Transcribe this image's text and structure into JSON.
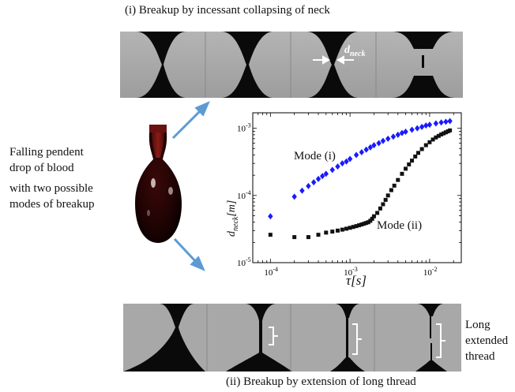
{
  "figure": {
    "top_caption": "(i) Breakup by incessant collapsing of neck",
    "bottom_caption": "(ii) Breakup by extension of long thread",
    "left_text": [
      "Falling pendent",
      "drop of blood",
      "with two possible",
      "modes of breakup"
    ],
    "right_text": [
      "Long",
      "extended",
      "thread"
    ],
    "dneck_label_base": "d",
    "dneck_label_sub": "neck"
  },
  "colors": {
    "arrow": "#5b9bd5",
    "mode_i": "#1a1aff",
    "mode_ii": "#111111",
    "frame_bg": "#a6a6a6",
    "blood_dark": "#2a0606",
    "blood_mid": "#6a1210"
  },
  "chart_data": {
    "type": "scatter",
    "xscale": "log",
    "yscale": "log",
    "xlim": [
      6e-05,
      0.025
    ],
    "ylim": [
      1e-05,
      0.0017
    ],
    "xticks": [
      {
        "value": 0.0001,
        "label_base": "10",
        "label_exp": "-4"
      },
      {
        "value": 0.001,
        "label_base": "10",
        "label_exp": "-3"
      },
      {
        "value": 0.01,
        "label_base": "10",
        "label_exp": "-2"
      }
    ],
    "yticks": [
      {
        "value": 1e-05,
        "label_base": "10",
        "label_exp": "-5"
      },
      {
        "value": 0.0001,
        "label_base": "10",
        "label_exp": "-4"
      },
      {
        "value": 0.001,
        "label_base": "10",
        "label_exp": "-3"
      }
    ],
    "xlabel": "τ[s]",
    "ylabel_base": "d",
    "ylabel_sub": "neck",
    "ylabel_rest": "[m]",
    "series": [
      {
        "name": "Mode (i)",
        "marker": "diamond",
        "color": "#1a1aff",
        "points": [
          [
            0.0001,
            4.9e-05
          ],
          [
            0.0002,
            9.6e-05
          ],
          [
            0.00025,
            0.000118
          ],
          [
            0.0003,
            0.000138
          ],
          [
            0.00035,
            0.000157
          ],
          [
            0.0004,
            0.000176
          ],
          [
            0.00045,
            0.000194
          ],
          [
            0.0005,
            0.00021
          ],
          [
            0.0006,
            0.00024
          ],
          [
            0.0007,
            0.00027
          ],
          [
            0.0008,
            0.0003
          ],
          [
            0.0009,
            0.00032
          ],
          [
            0.001,
            0.00035
          ],
          [
            0.0012,
            0.0004
          ],
          [
            0.0014,
            0.00044
          ],
          [
            0.0016,
            0.00048
          ],
          [
            0.0018,
            0.00052
          ],
          [
            0.002,
            0.00056
          ],
          [
            0.0023,
            0.0006
          ],
          [
            0.0026,
            0.00065
          ],
          [
            0.003,
            0.0007
          ],
          [
            0.0035,
            0.00075
          ],
          [
            0.004,
            0.0008
          ],
          [
            0.0045,
            0.00085
          ],
          [
            0.005,
            0.00089
          ],
          [
            0.006,
            0.00095
          ],
          [
            0.007,
            0.001
          ],
          [
            0.008,
            0.00105
          ],
          [
            0.009,
            0.0011
          ],
          [
            0.01,
            0.00113
          ],
          [
            0.012,
            0.00118
          ],
          [
            0.014,
            0.00122
          ],
          [
            0.016,
            0.00125
          ],
          [
            0.018,
            0.00128
          ]
        ]
      },
      {
        "name": "Mode (ii)",
        "marker": "square",
        "color": "#111111",
        "points": [
          [
            0.0001,
            2.6e-05
          ],
          [
            0.0002,
            2.4e-05
          ],
          [
            0.0003,
            2.4e-05
          ],
          [
            0.0004,
            2.6e-05
          ],
          [
            0.0005,
            2.8e-05
          ],
          [
            0.0006,
            2.9e-05
          ],
          [
            0.0007,
            3e-05
          ],
          [
            0.0008,
            3.1e-05
          ],
          [
            0.0009,
            3.2e-05
          ],
          [
            0.001,
            3.3e-05
          ],
          [
            0.0011,
            3.4e-05
          ],
          [
            0.0012,
            3.5e-05
          ],
          [
            0.0013,
            3.6e-05
          ],
          [
            0.0014,
            3.7e-05
          ],
          [
            0.0015,
            3.8e-05
          ],
          [
            0.0016,
            3.9e-05
          ],
          [
            0.0017,
            4e-05
          ],
          [
            0.0018,
            4.2e-05
          ],
          [
            0.0019,
            4.5e-05
          ],
          [
            0.002,
            4.9e-05
          ],
          [
            0.0022,
            5.5e-05
          ],
          [
            0.0024,
            6.4e-05
          ],
          [
            0.0026,
            7.4e-05
          ],
          [
            0.0028,
            8.6e-05
          ],
          [
            0.003,
            0.0001
          ],
          [
            0.0033,
            0.00012
          ],
          [
            0.0036,
            0.00014
          ],
          [
            0.004,
            0.00017
          ],
          [
            0.0045,
            0.00021
          ],
          [
            0.005,
            0.00025
          ],
          [
            0.0055,
            0.00029
          ],
          [
            0.006,
            0.00033
          ],
          [
            0.0066,
            0.00038
          ],
          [
            0.0072,
            0.00043
          ],
          [
            0.008,
            0.00049
          ],
          [
            0.009,
            0.00056
          ],
          [
            0.01,
            0.00062
          ],
          [
            0.011,
            0.00068
          ],
          [
            0.012,
            0.00073
          ],
          [
            0.013,
            0.00077
          ],
          [
            0.014,
            0.00081
          ],
          [
            0.015,
            0.00084
          ],
          [
            0.016,
            0.00087
          ],
          [
            0.017,
            0.0009
          ],
          [
            0.018,
            0.00093
          ]
        ]
      }
    ],
    "annotations": [
      "Mode (i)",
      "Mode (ii)"
    ]
  }
}
